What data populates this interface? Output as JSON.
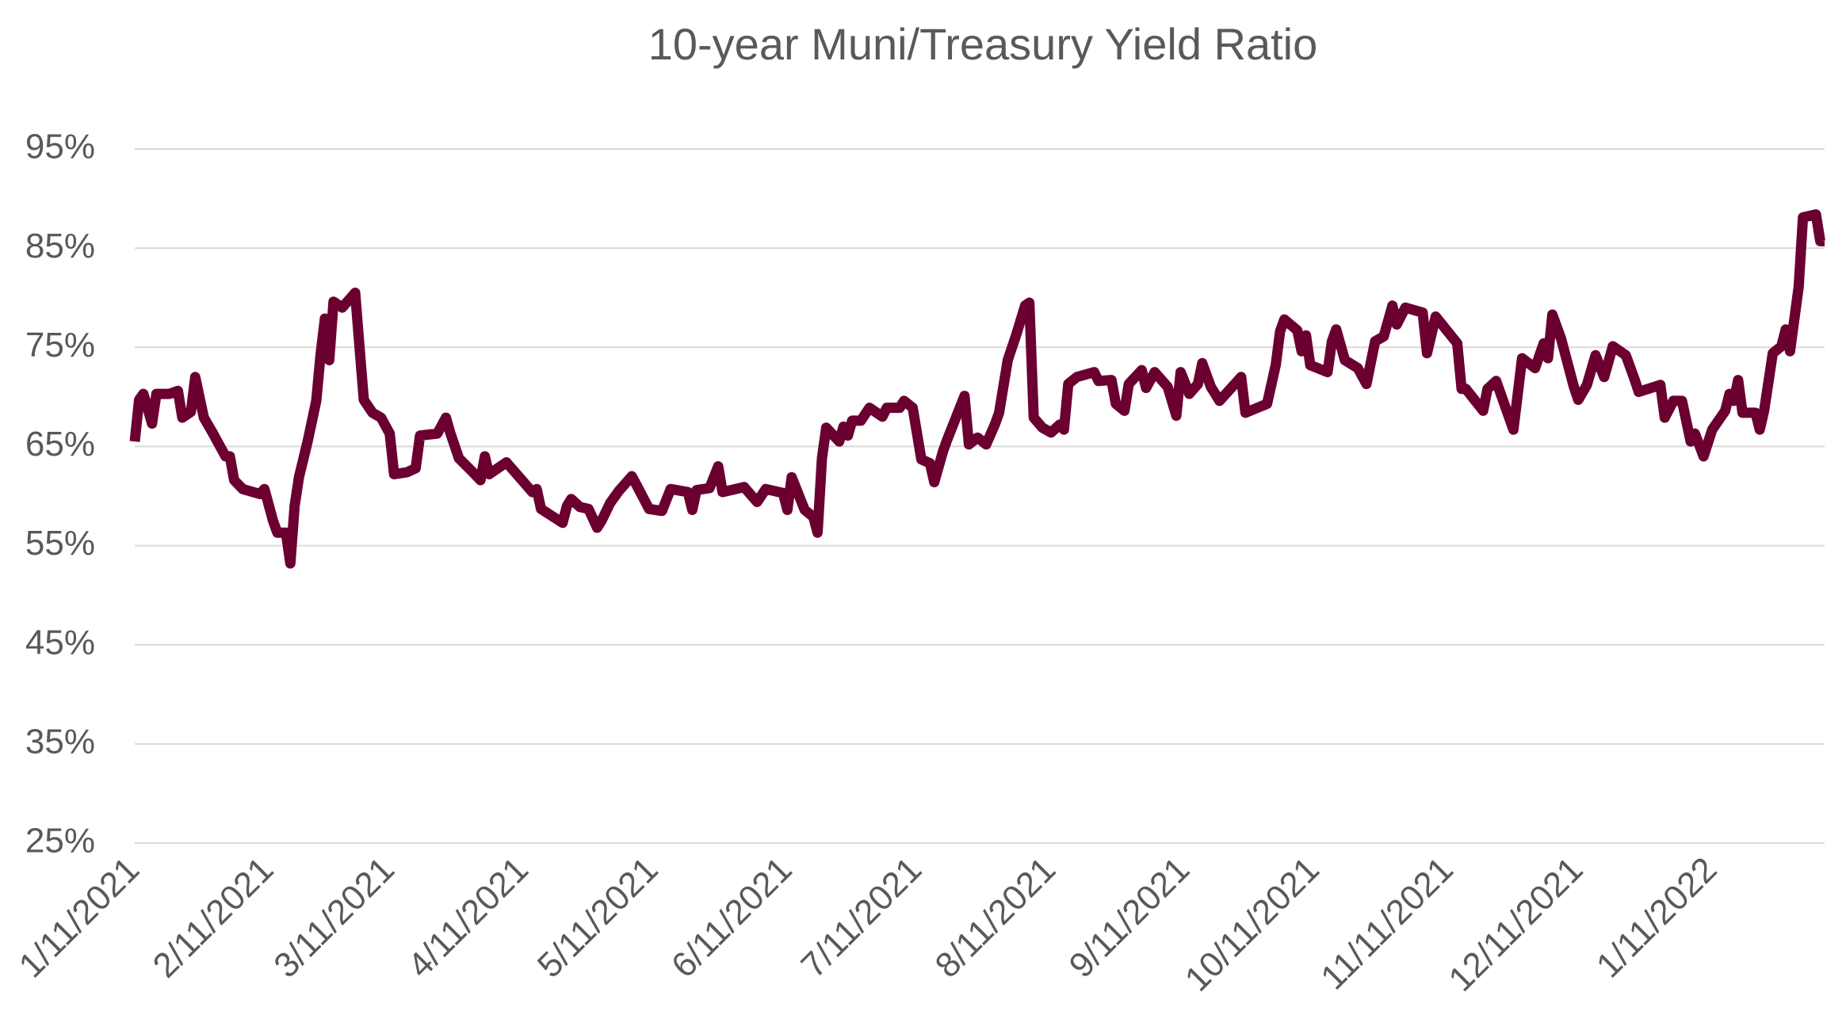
{
  "chart_data": {
    "type": "line",
    "title": "10-year Muni/Treasury Yield Ratio",
    "color": "#6b0030",
    "grid": true,
    "xlim": [
      "2021-01-11",
      "2022-02-06"
    ],
    "xticks": [
      {
        "value": "2021-01-11",
        "label": "1/11/2021"
      },
      {
        "value": "2021-02-11",
        "label": "2/11/2021"
      },
      {
        "value": "2021-03-11",
        "label": "3/11/2021"
      },
      {
        "value": "2021-04-11",
        "label": "4/11/2021"
      },
      {
        "value": "2021-05-11",
        "label": "5/11/2021"
      },
      {
        "value": "2021-06-11",
        "label": "6/11/2021"
      },
      {
        "value": "2021-07-11",
        "label": "7/11/2021"
      },
      {
        "value": "2021-08-11",
        "label": "8/11/2021"
      },
      {
        "value": "2021-09-11",
        "label": "9/11/2021"
      },
      {
        "value": "2021-10-11",
        "label": "10/11/2021"
      },
      {
        "value": "2021-11-11",
        "label": "11/11/2021"
      },
      {
        "value": "2021-12-11",
        "label": "12/11/2021"
      },
      {
        "value": "2022-01-11",
        "label": "1/11/2022"
      }
    ],
    "ylim": [
      25,
      95
    ],
    "yticks": [
      {
        "value": 25,
        "label": "25%"
      },
      {
        "value": 35,
        "label": "35%"
      },
      {
        "value": 45,
        "label": "45%"
      },
      {
        "value": 55,
        "label": "55%"
      },
      {
        "value": 65,
        "label": "65%"
      },
      {
        "value": 75,
        "label": "75%"
      },
      {
        "value": 85,
        "label": "85%"
      },
      {
        "value": 95,
        "label": "95%"
      }
    ],
    "x": [
      "2021-01-11",
      "2021-01-12",
      "2021-01-13",
      "2021-01-15",
      "2021-01-16",
      "2021-01-19",
      "2021-01-21",
      "2021-01-22",
      "2021-01-24",
      "2021-01-25",
      "2021-01-27",
      "2021-01-29",
      "2021-02-01",
      "2021-02-02",
      "2021-02-03",
      "2021-02-05",
      "2021-02-09",
      "2021-02-10",
      "2021-02-12",
      "2021-02-13",
      "2021-02-15",
      "2021-02-16",
      "2021-02-17",
      "2021-02-18",
      "2021-02-20",
      "2021-02-22",
      "2021-02-23",
      "2021-02-24",
      "2021-02-25",
      "2021-02-26",
      "2021-02-28",
      "2021-03-03",
      "2021-03-04",
      "2021-03-05",
      "2021-03-07",
      "2021-03-09",
      "2021-03-11",
      "2021-03-12",
      "2021-03-15",
      "2021-03-17",
      "2021-03-18",
      "2021-03-22",
      "2021-03-24",
      "2021-03-25",
      "2021-03-27",
      "2021-03-30",
      "2021-04-01",
      "2021-04-02",
      "2021-04-03",
      "2021-04-07",
      "2021-04-11",
      "2021-04-13",
      "2021-04-14",
      "2021-04-15",
      "2021-04-20",
      "2021-04-21",
      "2021-04-22",
      "2021-04-24",
      "2021-04-26",
      "2021-04-28",
      "2021-04-29",
      "2021-05-01",
      "2021-05-03",
      "2021-05-06",
      "2021-05-07",
      "2021-05-10",
      "2021-05-13",
      "2021-05-15",
      "2021-05-19",
      "2021-05-20",
      "2021-05-21",
      "2021-05-24",
      "2021-05-26",
      "2021-05-27",
      "2021-06-01",
      "2021-06-04",
      "2021-06-06",
      "2021-06-10",
      "2021-06-11",
      "2021-06-12",
      "2021-06-15",
      "2021-06-17",
      "2021-06-18",
      "2021-06-19",
      "2021-06-20",
      "2021-06-23",
      "2021-06-24",
      "2021-06-25",
      "2021-06-26",
      "2021-06-28",
      "2021-06-30",
      "2021-07-03",
      "2021-07-04",
      "2021-07-07",
      "2021-07-08",
      "2021-07-10",
      "2021-07-12",
      "2021-07-14",
      "2021-07-15",
      "2021-07-17",
      "2021-07-18",
      "2021-07-22",
      "2021-07-23",
      "2021-07-25",
      "2021-07-27",
      "2021-07-29",
      "2021-07-30",
      "2021-08-01",
      "2021-08-03",
      "2021-08-05",
      "2021-08-06",
      "2021-08-07",
      "2021-08-09",
      "2021-08-11",
      "2021-08-13",
      "2021-08-14",
      "2021-08-15",
      "2021-08-17",
      "2021-08-21",
      "2021-08-22",
      "2021-08-25",
      "2021-08-26",
      "2021-08-28",
      "2021-08-29",
      "2021-09-01",
      "2021-09-02",
      "2021-09-04",
      "2021-09-07",
      "2021-09-09",
      "2021-09-10",
      "2021-09-12",
      "2021-09-14",
      "2021-09-15",
      "2021-09-17",
      "2021-09-19",
      "2021-09-24",
      "2021-09-25",
      "2021-09-30",
      "2021-10-02",
      "2021-10-03",
      "2021-10-04",
      "2021-10-07",
      "2021-10-08",
      "2021-10-09",
      "2021-10-10",
      "2021-10-14",
      "2021-10-15",
      "2021-10-16",
      "2021-10-18",
      "2021-10-21",
      "2021-10-23",
      "2021-10-25",
      "2021-10-27",
      "2021-10-29",
      "2021-10-30",
      "2021-11-01",
      "2021-11-05",
      "2021-11-06",
      "2021-11-08",
      "2021-11-13",
      "2021-11-14",
      "2021-11-15",
      "2021-11-19",
      "2021-11-20",
      "2021-11-22",
      "2021-11-26",
      "2021-11-28",
      "2021-12-01",
      "2021-12-03",
      "2021-12-04",
      "2021-12-05",
      "2021-12-07",
      "2021-12-10",
      "2021-12-11",
      "2021-12-13",
      "2021-12-15",
      "2021-12-17",
      "2021-12-19",
      "2021-12-22",
      "2021-12-24",
      "2021-12-25",
      "2021-12-30",
      "2021-12-31",
      "2022-01-02",
      "2022-01-04",
      "2022-01-06",
      "2022-01-07",
      "2022-01-09",
      "2022-01-11",
      "2022-01-14",
      "2022-01-15",
      "2022-01-16",
      "2022-01-17",
      "2022-01-18",
      "2022-01-21",
      "2022-01-22",
      "2022-01-23",
      "2022-01-25",
      "2022-01-27",
      "2022-01-28",
      "2022-01-29",
      "2022-01-31",
      "2022-02-01",
      "2022-02-04",
      "2022-02-05",
      "2022-02-06"
    ],
    "values": [
      65.5,
      69.7,
      70.3,
      67.3,
      70.3,
      70.3,
      70.6,
      67.9,
      68.5,
      72,
      67.9,
      66.4,
      64,
      64,
      61.6,
      60.7,
      60.2,
      60.7,
      57.5,
      56.3,
      56.3,
      53.2,
      59,
      61.9,
      65.5,
      69.6,
      74.3,
      77.9,
      73.7,
      79.6,
      79,
      80.5,
      75.1,
      69.7,
      68.4,
      67.9,
      66.3,
      62.2,
      62.4,
      62.8,
      66.1,
      66.3,
      67.9,
      66.4,
      63.8,
      62.5,
      61.6,
      64,
      62.2,
      63.4,
      61.4,
      60.4,
      60.7,
      58.7,
      57.3,
      59,
      59.7,
      58.9,
      58.7,
      56.8,
      57.5,
      59.3,
      60.5,
      62,
      61.2,
      58.7,
      58.5,
      60.7,
      60.4,
      58.6,
      60.6,
      60.8,
      63,
      60.4,
      60.9,
      59.4,
      60.7,
      60.3,
      58.6,
      61.9,
      58.6,
      57.9,
      56.3,
      63.8,
      66.9,
      65.5,
      67,
      66.1,
      67.6,
      67.6,
      68.9,
      68,
      68.9,
      68.9,
      69.6,
      68.9,
      63.7,
      63.3,
      61.4,
      64.5,
      65.7,
      70.1,
      65.2,
      65.9,
      65.2,
      67.2,
      68.4,
      73.7,
      76.3,
      79.2,
      79.5,
      67.9,
      66.9,
      66.4,
      67.2,
      66.7,
      71.3,
      72,
      72.5,
      71.6,
      71.7,
      69.3,
      68.6,
      71.3,
      72.7,
      70.9,
      72.5,
      71,
      68.1,
      72.5,
      70.3,
      71.3,
      73.4,
      71,
      69.6,
      72,
      68.4,
      69.3,
      73.2,
      76.6,
      77.8,
      76.7,
      74.6,
      76.2,
      73.2,
      72.5,
      75.6,
      76.8,
      73.7,
      72.9,
      71.3,
      75.6,
      76.1,
      79.2,
      77.3,
      79,
      78.5,
      74.4,
      78.1,
      75.4,
      70.8,
      70.8,
      68.6,
      70.8,
      71.6,
      66.7,
      73.9,
      72.9,
      75.4,
      73.9,
      78.3,
      75.9,
      71,
      69.7,
      71.2,
      74.2,
      72,
      75.1,
      74.2,
      71.8,
      70.5,
      71.2,
      67.9,
      69.6,
      69.6,
      65.5,
      66.3,
      64,
      66.7,
      68.6,
      70.3,
      69.6,
      71.7,
      68.4,
      68.4,
      66.7,
      68.6,
      74.4,
      75.1,
      76.8,
      74.6,
      81.1,
      88.1,
      88.4,
      85.7,
      85.7
    ]
  }
}
